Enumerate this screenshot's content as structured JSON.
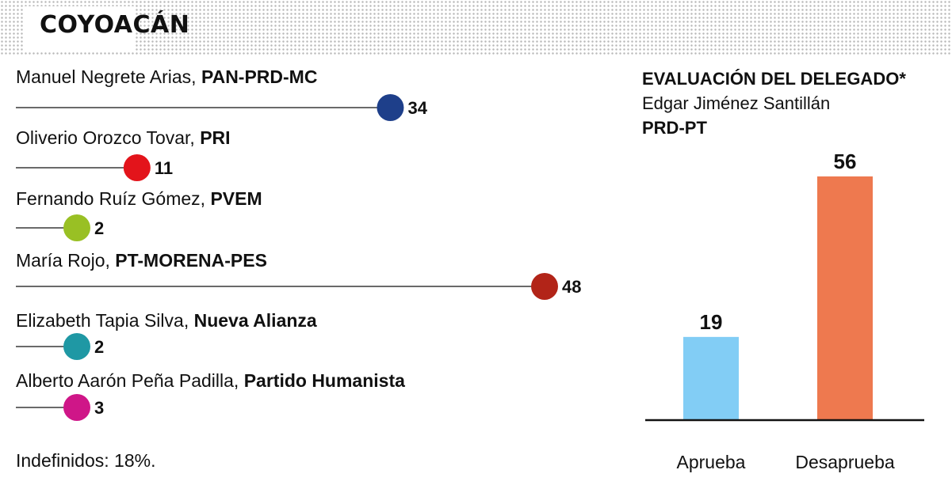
{
  "title": "COYOACÁN",
  "candidates": [
    {
      "name": "Manuel Negrete Arias, ",
      "party": "PAN-PRD-MC",
      "value": 34,
      "color": "#1e3f8a"
    },
    {
      "name": "Oliverio Orozco Tovar,  ",
      "party": "PRI",
      "value": 11,
      "color": "#e3141b"
    },
    {
      "name": "Fernando Ruíz Gómez, ",
      "party": "PVEM",
      "value": 2,
      "color": "#99c024"
    },
    {
      "name": "María Rojo, ",
      "party": "PT-MORENA-PES",
      "value": 48,
      "color": "#b22418"
    },
    {
      "name": "Elizabeth Tapia Silva, ",
      "party": "Nueva Alianza",
      "value": 2,
      "color": "#1f98a4"
    },
    {
      "name": "Alberto Aarón Peña Padilla, ",
      "party": "Partido Humanista",
      "value": 3,
      "color": "#cf1688"
    }
  ],
  "footnote": "Indefinidos: 18%.",
  "evaluation": {
    "heading": "EVALUACIÓN DEL DELEGADO*",
    "person": "Edgar Jiménez Santillán",
    "party": "PRD-PT"
  },
  "chart_data": [
    {
      "type": "scatter",
      "categories": [
        "Manuel Negrete Arias, PAN-PRD-MC",
        "Oliverio Orozco Tovar, PRI",
        "Fernando Ruíz Gómez, PVEM",
        "María Rojo, PT-MORENA-PES",
        "Elizabeth Tapia Silva, Nueva Alianza",
        "Alberto Aarón Peña Padilla, Partido Humanista"
      ],
      "values": [
        34,
        11,
        2,
        48,
        2,
        3
      ],
      "colors": [
        "#1e3f8a",
        "#e3141b",
        "#99c024",
        "#b22418",
        "#1f98a4",
        "#cf1688"
      ],
      "title": "COYOACÁN",
      "xlim": [
        0,
        48
      ]
    },
    {
      "type": "bar",
      "categories": [
        "Aprueba",
        "Desaprueba"
      ],
      "values": [
        19,
        56
      ],
      "colors": [
        "#82cdf5",
        "#ee794f"
      ],
      "title": "EVALUACIÓN DEL DELEGADO*",
      "subtitle": "Edgar Jiménez Santillán",
      "ylim": [
        0,
        56
      ]
    }
  ]
}
